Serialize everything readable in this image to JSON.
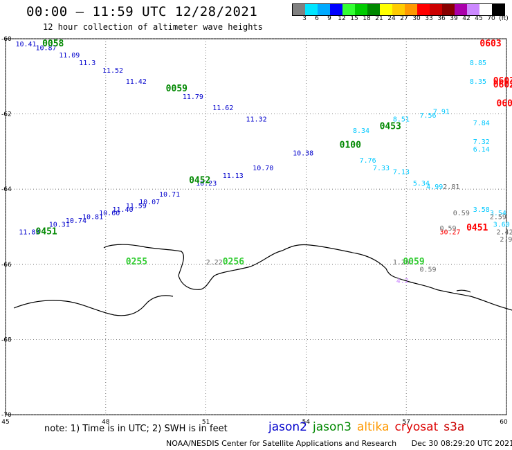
{
  "title": "00:00 – 11:59 UTC 12/28/2021",
  "subtitle": "12 hour collection of altimeter wave heights",
  "colorbar": {
    "colors": [
      "#808080",
      "#00e5ff",
      "#00aaff",
      "#0000ff",
      "#33ff33",
      "#00cc00",
      "#008800",
      "#ffff00",
      "#ffcc00",
      "#ff9900",
      "#ff0000",
      "#cc0000",
      "#880000",
      "#aa00aa",
      "#cc88ff",
      "#ffffff",
      "#000000"
    ],
    "labels": [
      "3",
      "6",
      "9",
      "12",
      "15",
      "18",
      "21",
      "24",
      "27",
      "30",
      "33",
      "36",
      "39",
      "42",
      "45",
      "70",
      "(ft)"
    ]
  },
  "map": {
    "lon_range": [
      45,
      60
    ],
    "lat_range": [
      -70,
      -60
    ],
    "lon_ticks": [
      "45",
      "48",
      "51",
      "54",
      "57",
      "60"
    ],
    "lat_ticks": [
      "-60",
      "-62",
      "-64",
      "-66",
      "-68",
      "-70"
    ],
    "grid": "dotted"
  },
  "tracks": [
    {
      "satellite": "jason2",
      "color": "#0000cc",
      "label": "",
      "readings": [
        [
          "10.41",
          45.3,
          -60.2
        ],
        [
          "10.87",
          45.9,
          -60.3
        ],
        [
          "11.09",
          46.6,
          -60.5
        ],
        [
          "11.3",
          47.2,
          -60.7
        ],
        [
          "11.52",
          47.9,
          -60.9
        ],
        [
          "11.42",
          48.6,
          -61.2
        ],
        [
          "11.79",
          50.3,
          -61.6
        ],
        [
          "11.62",
          51.2,
          -61.9
        ],
        [
          "11.32",
          52.2,
          -62.2
        ]
      ]
    },
    {
      "satellite": "jason2",
      "color": "#0000cc",
      "label": "0452",
      "readings": [
        [
          "11.83",
          45.4,
          -65.2
        ],
        [
          "10.31",
          46.3,
          -65.0
        ],
        [
          "10.74",
          46.8,
          -64.9
        ],
        [
          "10.81",
          47.3,
          -64.8
        ],
        [
          "10.60",
          47.8,
          -64.7
        ],
        [
          "11.40",
          48.2,
          -64.6
        ],
        [
          "11.59",
          48.6,
          -64.5
        ],
        [
          "10.07",
          49.0,
          -64.4
        ],
        [
          "10.71",
          49.6,
          -64.2
        ],
        [
          "10.23",
          50.7,
          -63.9
        ],
        [
          "11.13",
          51.5,
          -63.7
        ],
        [
          "10.70",
          52.4,
          -63.5
        ],
        [
          "10.38",
          53.6,
          -63.1
        ]
      ]
    },
    {
      "satellite": "jason3",
      "color": "#008800",
      "label": "",
      "readings": [
        [
          "0058",
          46.1,
          -60.2
        ],
        [
          "0059",
          49.8,
          -61.4
        ],
        [
          "0451",
          45.9,
          -65.2
        ],
        [
          "0100",
          55.0,
          -62.9
        ],
        [
          "0453",
          56.2,
          -62.4
        ]
      ]
    },
    {
      "satellite": "cryosat",
      "color": "#ff0000",
      "label": "",
      "readings": [
        [
          "0603",
          59.2,
          -60.2
        ],
        [
          "0603",
          59.6,
          -61.2
        ],
        [
          "0602",
          59.6,
          -61.3
        ],
        [
          "060",
          59.7,
          -61.8
        ],
        [
          "0451",
          58.8,
          -65.1
        ],
        [
          "30.27",
          58.0,
          -65.2
        ]
      ]
    },
    {
      "satellite": "s3a",
      "color": "#00c8ff",
      "label": "",
      "readings": [
        [
          "8.85",
          58.9,
          -60.7
        ],
        [
          "8.35",
          58.9,
          -61.2
        ],
        [
          "7.56",
          57.4,
          -62.1
        ],
        [
          "7.91",
          57.8,
          -62.0
        ],
        [
          "7.84",
          59.0,
          -62.3
        ],
        [
          "7.32",
          59.0,
          -62.8
        ],
        [
          "6.14",
          59.0,
          -63.0
        ],
        [
          "4.99",
          57.6,
          -64.0
        ],
        [
          "3.58",
          59.0,
          -64.6
        ],
        [
          "3.54",
          59.5,
          -64.7
        ],
        [
          "3.60",
          59.6,
          -65.0
        ]
      ]
    },
    {
      "satellite": "s3a",
      "color": "#00c8ff",
      "label": "",
      "readings": [
        [
          "8.51",
          56.6,
          -62.2
        ],
        [
          "8.34",
          55.4,
          -62.5
        ],
        [
          "7.76",
          55.6,
          -63.3
        ],
        [
          "7.33",
          56.0,
          -63.5
        ],
        [
          "7.13",
          56.6,
          -63.6
        ],
        [
          "5.34",
          57.2,
          -63.9
        ]
      ]
    },
    {
      "satellite": "other",
      "color": "#666666",
      "label": "",
      "readings": [
        [
          "2.81",
          58.1,
          -64.0
        ],
        [
          "0.59",
          58.4,
          -64.7
        ],
        [
          "2.59",
          59.5,
          -64.8
        ],
        [
          "0.59",
          58.0,
          -65.1
        ],
        [
          "2.42",
          59.7,
          -65.2
        ],
        [
          "2.9",
          59.8,
          -65.4
        ],
        [
          "1.26",
          56.6,
          -66.0
        ],
        [
          "0.59",
          57.4,
          -66.2
        ],
        [
          "2.22",
          51.0,
          -66.0
        ]
      ]
    },
    {
      "satellite": "jason3",
      "color": "#33cc33",
      "label": "",
      "readings": [
        [
          "0255",
          48.6,
          -66.0
        ],
        [
          "0256",
          51.5,
          -66.0
        ],
        [
          "0059",
          56.9,
          -66.0
        ]
      ]
    },
    {
      "satellite": "altika",
      "color": "#cc88ff",
      "label": "",
      "readings": [
        [
          "4.2",
          56.7,
          -66.5
        ]
      ]
    }
  ],
  "legend": [
    {
      "name": "jason2",
      "color": "#0000cc"
    },
    {
      "name": "jason3",
      "color": "#008800"
    },
    {
      "name": "altika",
      "color": "#ff9900"
    },
    {
      "name": "cryosat",
      "color": "#dd0000"
    },
    {
      "name": "s3a",
      "color": "#cc0000"
    }
  ],
  "note": "note:  1) Time is in UTC;  2) SWH is in feet",
  "footer": {
    "credit": "NOAA/NESDIS Center for Satellite Applications and Research",
    "timestamp": "Dec 30 08:29:20 UTC 2021"
  }
}
